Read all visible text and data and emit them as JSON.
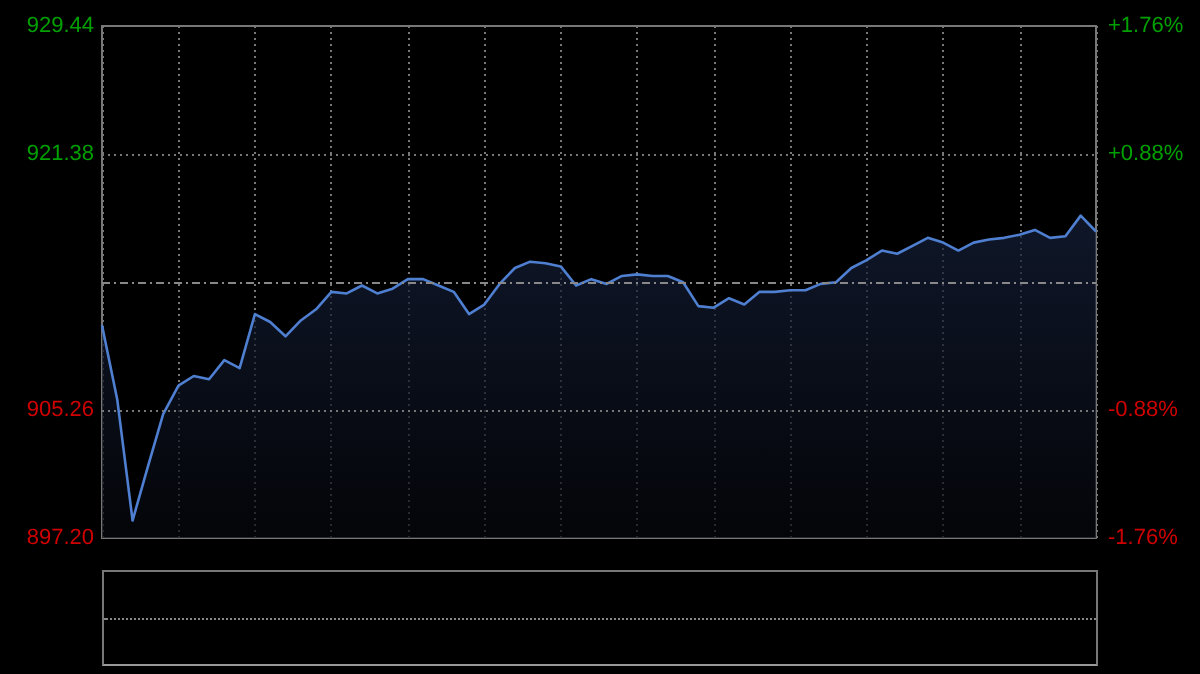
{
  "chart_data": {
    "type": "area",
    "categories": [
      null,
      null,
      null,
      null,
      null,
      null,
      null,
      null,
      null,
      null,
      null,
      null,
      null,
      null,
      null,
      null,
      null,
      null,
      null,
      null,
      null,
      null,
      null,
      null,
      null,
      null,
      null,
      null,
      null,
      null,
      null,
      null,
      null,
      null,
      null,
      null,
      null,
      null,
      null,
      null,
      null,
      null,
      null,
      null,
      null,
      null,
      null,
      null,
      null,
      null,
      null,
      null,
      null,
      null,
      null,
      null,
      null,
      null,
      null,
      null,
      null,
      null,
      null,
      null,
      null,
      null
    ],
    "series": [
      {
        "color": "#4f7fd0",
        "values": [
          910.6,
          905.9,
          898.3,
          901.7,
          905.0,
          906.8,
          907.4,
          907.2,
          908.4,
          907.9,
          911.3,
          910.8,
          909.9,
          910.9,
          911.6,
          912.7,
          912.6,
          913.1,
          912.6,
          912.9,
          913.5,
          913.5,
          913.1,
          912.7,
          911.3,
          911.9,
          913.2,
          914.2,
          914.6,
          914.5,
          914.3,
          913.1,
          913.5,
          913.2,
          913.7,
          913.8,
          913.7,
          913.7,
          913.3,
          911.8,
          911.7,
          912.3,
          911.9,
          912.7,
          912.7,
          912.8,
          912.8,
          913.2,
          913.3,
          914.2,
          914.7,
          915.3,
          915.1,
          915.6,
          916.1,
          915.8,
          915.3,
          915.8,
          916.0,
          916.1,
          916.3,
          916.6,
          916.1,
          916.2,
          917.5,
          916.5
        ]
      }
    ],
    "ylim": [
      897.2,
      929.44
    ],
    "yticks": [
      {
        "value": 897.2,
        "label": "897.20"
      },
      {
        "value": 905.26,
        "label": "905.26"
      },
      {
        "value": 921.38,
        "label": "921.38"
      },
      {
        "value": 929.44,
        "label": "929.44"
      }
    ],
    "y2lim": [
      -1.76,
      1.76
    ],
    "y2ticks": [
      {
        "value": -1.76,
        "label": "-1.76%"
      },
      {
        "value": -0.88,
        "label": "-0.88%"
      },
      {
        "value": 0.88,
        "label": "+0.88%"
      },
      {
        "value": 1.76,
        "label": "+1.76%"
      }
    ],
    "ref_lines": [
      {
        "axis": "y",
        "value": 913.32
      }
    ],
    "grid": true
  }
}
